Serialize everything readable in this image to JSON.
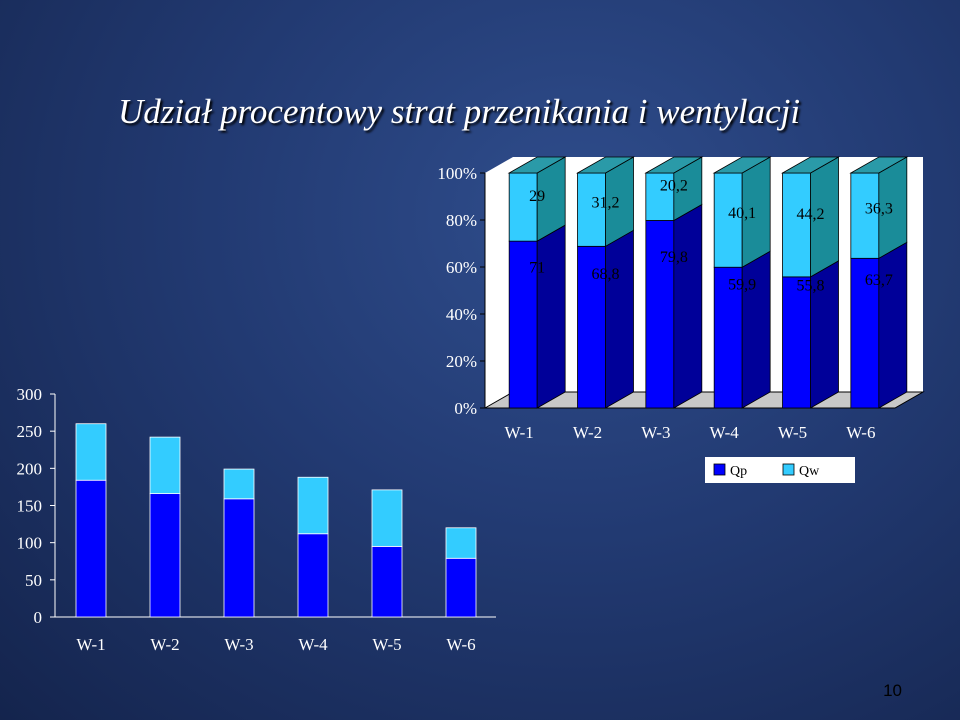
{
  "slide": {
    "title": "Udział procentowy strat przenikania i wentylacji",
    "page_number": "10"
  },
  "colors": {
    "qp": "#0000ff",
    "qp_side": "#000099",
    "qw": "#33ccff",
    "qw_side": "#1a8c99",
    "qw_top": "#2a9aa8",
    "floor": "#c8c8c8",
    "wall": "#ffffff"
  },
  "chart_data": [
    {
      "type": "bar",
      "stacked": "percent",
      "three_d": true,
      "categories": [
        "W-1",
        "W-2",
        "W-3",
        "W-4",
        "W-5",
        "W-6"
      ],
      "y_ticks": [
        "0%",
        "20%",
        "40%",
        "60%",
        "80%",
        "100%"
      ],
      "ylim": [
        0,
        100
      ],
      "grid": false,
      "legend_position": "bottom-right",
      "series": [
        {
          "name": "Qp",
          "color": "#0000ff",
          "values": [
            71,
            68.8,
            79.8,
            59.9,
            55.8,
            63.7
          ],
          "labels": [
            "71",
            "68,8",
            "79,8",
            "59,9",
            "55,8",
            "63,7"
          ]
        },
        {
          "name": "Qw",
          "color": "#33ccff",
          "values": [
            29,
            31.2,
            20.2,
            40.1,
            44.2,
            36.3
          ],
          "labels": [
            "29",
            "31,2",
            "20,2",
            "40,1",
            "44,2",
            "36,3"
          ]
        }
      ]
    },
    {
      "type": "bar",
      "stacked": true,
      "categories": [
        "W-1",
        "W-2",
        "W-3",
        "W-4",
        "W-5",
        "W-6"
      ],
      "y_ticks": [
        "0",
        "50",
        "100",
        "150",
        "200",
        "250",
        "300"
      ],
      "ylim": [
        0,
        300
      ],
      "grid": false,
      "legend": false,
      "series": [
        {
          "color": "#0000ff",
          "values": [
            184,
            166,
            159,
            112,
            95,
            79
          ]
        },
        {
          "color": "#33ccff",
          "values": [
            76,
            76,
            40,
            76,
            76,
            41
          ]
        }
      ]
    }
  ]
}
